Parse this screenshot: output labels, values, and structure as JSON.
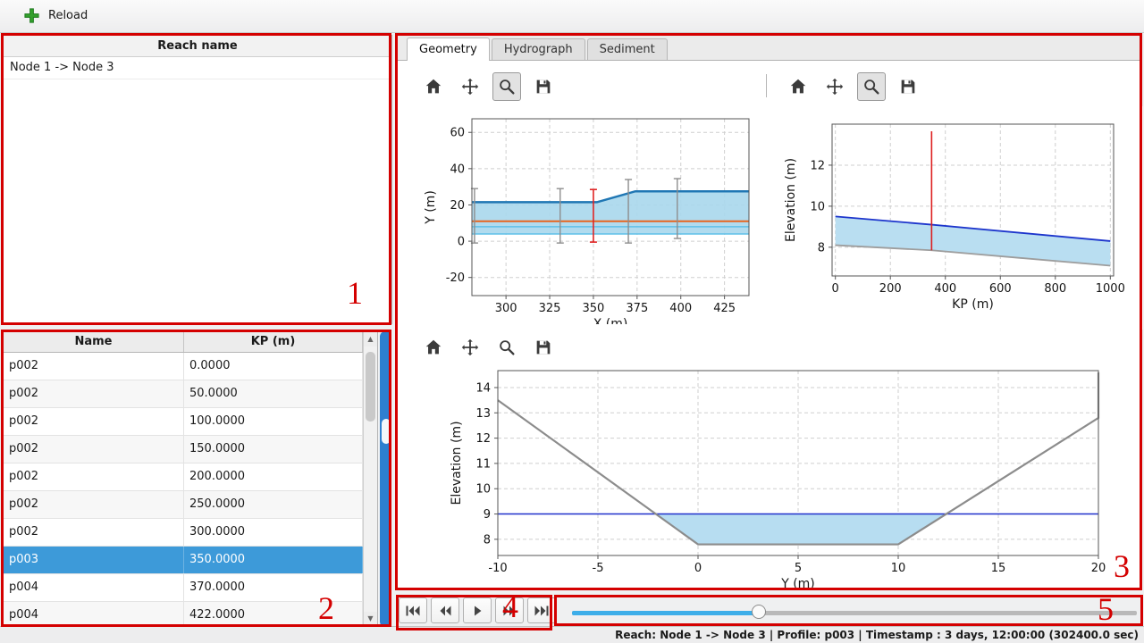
{
  "toolbar": {
    "reload_label": "Reload"
  },
  "reach_panel": {
    "header": "Reach name",
    "items": [
      "Node 1 -> Node 3"
    ]
  },
  "profile_table": {
    "columns": [
      "Name",
      "KP (m)"
    ],
    "rows": [
      [
        "p002",
        "0.0000"
      ],
      [
        "p002",
        "50.0000"
      ],
      [
        "p002",
        "100.0000"
      ],
      [
        "p002",
        "150.0000"
      ],
      [
        "p002",
        "200.0000"
      ],
      [
        "p002",
        "250.0000"
      ],
      [
        "p002",
        "300.0000"
      ],
      [
        "p003",
        "350.0000"
      ],
      [
        "p004",
        "370.0000"
      ],
      [
        "p004",
        "422.0000"
      ]
    ],
    "selected_index": 7
  },
  "tabs": [
    {
      "label": "Geometry",
      "active": true
    },
    {
      "label": "Hydrograph",
      "active": false
    },
    {
      "label": "Sediment",
      "active": false
    }
  ],
  "plot_toolbar_icons": [
    "home-icon",
    "pan-icon",
    "zoom-icon",
    "save-icon"
  ],
  "playback": {
    "buttons": [
      "skip-start",
      "seek-backward",
      "play",
      "seek-forward",
      "skip-end"
    ]
  },
  "slider": {
    "percent": 33
  },
  "annotations": {
    "labels": [
      "1",
      "2",
      "3",
      "4",
      "5"
    ]
  },
  "status_bar": {
    "text": "Reach: Node 1 -> Node 3 | Profile: p003 | Timestamp : 3 days, 12:00:00 (302400.0 sec)"
  },
  "colors": {
    "selection": "#3d9ad9",
    "slider": "#3daee9",
    "annotation": "#d40000",
    "accent_green": "#33a02c",
    "scrollbar_blue": "#2e7fd0"
  },
  "chart_data": [
    {
      "type": "line",
      "name": "plan-view",
      "xlabel": "X (m)",
      "ylabel": "Y (m)",
      "xlim": [
        280.5,
        439
      ],
      "ylim": [
        -30,
        67.5
      ],
      "xticks": [
        300,
        325,
        350,
        375,
        400,
        425
      ],
      "yticks": [
        -20,
        0,
        20,
        40,
        60
      ],
      "grid": true,
      "legend": "none",
      "series": [
        {
          "name": "channel-area",
          "kind": "area",
          "color": "#a9d7ec",
          "opacity": 0.9,
          "x": [
            280.5,
            352,
            374,
            439
          ],
          "y_top": [
            22,
            22,
            28,
            28
          ],
          "y_bottom": [
            4,
            4,
            4,
            4
          ]
        },
        {
          "name": "left-bank-line",
          "kind": "line",
          "color": "#2077b4",
          "width": 2.5,
          "x": [
            280.5,
            352,
            374,
            439
          ],
          "y": [
            21.5,
            21.5,
            27.5,
            27.5
          ]
        },
        {
          "name": "centerline",
          "kind": "line",
          "color": "#e8641e",
          "width": 2,
          "x": [
            280.5,
            439
          ],
          "y": [
            11,
            11
          ]
        },
        {
          "name": "lower-bank-line",
          "kind": "line",
          "color": "#5fc0e8",
          "width": 1.5,
          "x": [
            280.5,
            439
          ],
          "y": [
            8,
            8
          ]
        },
        {
          "name": "bottom-edge-line",
          "kind": "line",
          "color": "#5fc0e8",
          "width": 1.5,
          "x": [
            280.5,
            439
          ],
          "y": [
            4,
            4
          ]
        },
        {
          "name": "profile-markers",
          "kind": "vmarkers",
          "color": "#8d8d8d",
          "width": 1.4,
          "caps": true,
          "markers": [
            {
              "x": 282,
              "y0": -1,
              "y1": 29
            },
            {
              "x": 331,
              "y0": -1,
              "y1": 29
            },
            {
              "x": 370,
              "y0": -1,
              "y1": 34
            },
            {
              "x": 398,
              "y0": 1.5,
              "y1": 34.5
            }
          ]
        },
        {
          "name": "selected-profile-marker",
          "kind": "vmarkers",
          "color": "#e02424",
          "width": 1.6,
          "caps": true,
          "markers": [
            {
              "x": 350,
              "y0": -0.5,
              "y1": 28.5
            }
          ]
        }
      ]
    },
    {
      "type": "line",
      "name": "long-profile",
      "xlabel": "KP (m)",
      "ylabel": "Elevation (m)",
      "xlim": [
        -12,
        1012
      ],
      "ylim": [
        6.6,
        14.0
      ],
      "xticks": [
        0,
        200,
        400,
        600,
        800,
        1000
      ],
      "yticks": [
        8,
        10,
        12
      ],
      "grid": true,
      "legend": "none",
      "series": [
        {
          "name": "water-area",
          "kind": "area",
          "color": "#b9def1",
          "opacity": 1,
          "x": [
            0,
            350,
            1000
          ],
          "y_top": [
            9.5,
            9.1,
            8.3
          ],
          "y_bottom": [
            8.1,
            7.85,
            7.1
          ]
        },
        {
          "name": "water-surface",
          "kind": "line",
          "color": "#1d35cc",
          "width": 1.8,
          "x": [
            0,
            350,
            1000
          ],
          "y": [
            9.5,
            9.1,
            8.3
          ]
        },
        {
          "name": "bed",
          "kind": "line",
          "color": "#9d9d9d",
          "width": 1.8,
          "x": [
            0,
            350,
            1000
          ],
          "y": [
            8.1,
            7.85,
            7.1
          ]
        },
        {
          "name": "selected-profile-marker",
          "kind": "vmarkers",
          "color": "#dd1f1f",
          "width": 1.6,
          "caps": false,
          "markers": [
            {
              "x": 350,
              "y0": 7.85,
              "y1": 13.65
            }
          ]
        }
      ]
    },
    {
      "type": "line",
      "name": "cross-section",
      "xlabel": "Y (m)",
      "ylabel": "Elevation (m)",
      "xlim": [
        -10,
        20
      ],
      "ylim": [
        7.36,
        14.67
      ],
      "xticks": [
        -10,
        -5,
        0,
        5,
        10,
        15,
        20
      ],
      "yticks": [
        8,
        9,
        10,
        11,
        12,
        13,
        14
      ],
      "grid": true,
      "legend": "none",
      "series": [
        {
          "name": "water-area",
          "kind": "area",
          "color": "#b7ddf1",
          "opacity": 1,
          "x": [
            -2.1,
            0,
            10,
            12.4
          ],
          "y_top": [
            9,
            9,
            9,
            9
          ],
          "y_bottom": [
            9,
            7.8,
            7.8,
            9
          ]
        },
        {
          "name": "water-level",
          "kind": "line",
          "color": "#2030cc",
          "width": 1.5,
          "x": [
            -10,
            20
          ],
          "y": [
            9,
            9
          ]
        },
        {
          "name": "bed-profile",
          "kind": "line",
          "color": "#8c8c8c",
          "width": 2.2,
          "x": [
            -10,
            0,
            10,
            20,
            20
          ],
          "y": [
            13.5,
            7.8,
            7.8,
            12.8,
            14.6
          ]
        }
      ]
    }
  ]
}
